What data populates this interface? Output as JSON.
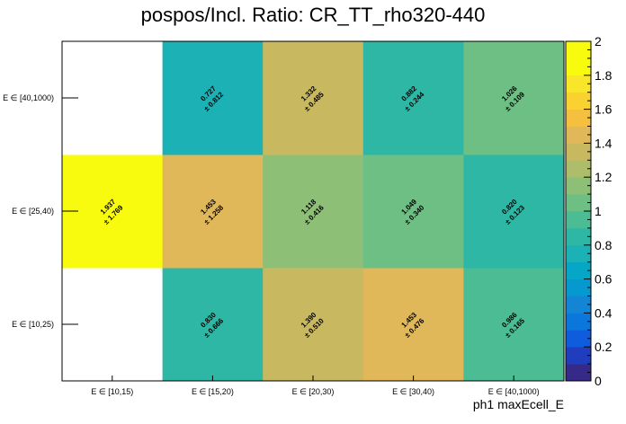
{
  "chart_data": {
    "type": "heatmap",
    "title": "pospos/Incl. Ratio: CR_TT_rho320-440",
    "xlabel": "ph1 maxEcell_E",
    "ylabel": "",
    "x_categories": [
      "E ∈ [10,15)",
      "E ∈ [15,20)",
      "E ∈ [20,30)",
      "E ∈ [30,40)",
      "E ∈ [40,1000)"
    ],
    "y_categories": [
      "E ∈ [10,25)",
      "E ∈ [25,40)",
      "E ∈ [40,1000)"
    ],
    "zlim": [
      0,
      2
    ],
    "z_ticks": [
      "0",
      "0.2",
      "0.4",
      "0.6",
      "0.8",
      "1",
      "1.2",
      "1.4",
      "1.6",
      "1.8",
      "2"
    ],
    "cells": [
      {
        "x": 0,
        "y": 0,
        "value": null,
        "error": null,
        "value_label": "",
        "error_label": ""
      },
      {
        "x": 1,
        "y": 0,
        "value": 0.83,
        "error": 0.666,
        "value_label": "0.830",
        "error_label": "± 0.666"
      },
      {
        "x": 2,
        "y": 0,
        "value": 1.39,
        "error": 0.51,
        "value_label": "1.390",
        "error_label": "± 0.510"
      },
      {
        "x": 3,
        "y": 0,
        "value": 1.453,
        "error": 0.476,
        "value_label": "1.453",
        "error_label": "± 0.476"
      },
      {
        "x": 4,
        "y": 0,
        "value": 0.986,
        "error": 0.165,
        "value_label": "0.986",
        "error_label": "± 0.165"
      },
      {
        "x": 0,
        "y": 1,
        "value": 1.937,
        "error": 1.769,
        "value_label": "1.937",
        "error_label": "± 1.769"
      },
      {
        "x": 1,
        "y": 1,
        "value": 1.453,
        "error": 1.258,
        "value_label": "1.453",
        "error_label": "± 1.258"
      },
      {
        "x": 2,
        "y": 1,
        "value": 1.118,
        "error": 0.416,
        "value_label": "1.118",
        "error_label": "± 0.416"
      },
      {
        "x": 3,
        "y": 1,
        "value": 1.049,
        "error": 0.34,
        "value_label": "1.049",
        "error_label": "± 0.340"
      },
      {
        "x": 4,
        "y": 1,
        "value": 0.82,
        "error": 0.123,
        "value_label": "0.820",
        "error_label": "± 0.123"
      },
      {
        "x": 0,
        "y": 2,
        "value": null,
        "error": null,
        "value_label": "",
        "error_label": ""
      },
      {
        "x": 1,
        "y": 2,
        "value": 0.727,
        "error": 0.812,
        "value_label": "0.727",
        "error_label": "± 0.812"
      },
      {
        "x": 2,
        "y": 2,
        "value": 1.332,
        "error": 0.485,
        "value_label": "1.332",
        "error_label": "± 0.485"
      },
      {
        "x": 3,
        "y": 2,
        "value": 0.882,
        "error": 0.244,
        "value_label": "0.882",
        "error_label": "± 0.244"
      },
      {
        "x": 4,
        "y": 2,
        "value": 1.026,
        "error": 0.109,
        "value_label": "1.026",
        "error_label": "± 0.109"
      }
    ],
    "colormap": [
      "#352a87",
      "#1f3dbd",
      "#0f5cdd",
      "#0b76db",
      "#1485d4",
      "#0699cf",
      "#06a7c6",
      "#1cb1b4",
      "#2eb7a4",
      "#4bbc93",
      "#6dbf84",
      "#8ebf76",
      "#aebd69",
      "#c8b860",
      "#e0b85a",
      "#f5c03f",
      "#f9d131",
      "#f9e52a",
      "#f9fb0e",
      "#f9fb0e"
    ]
  }
}
